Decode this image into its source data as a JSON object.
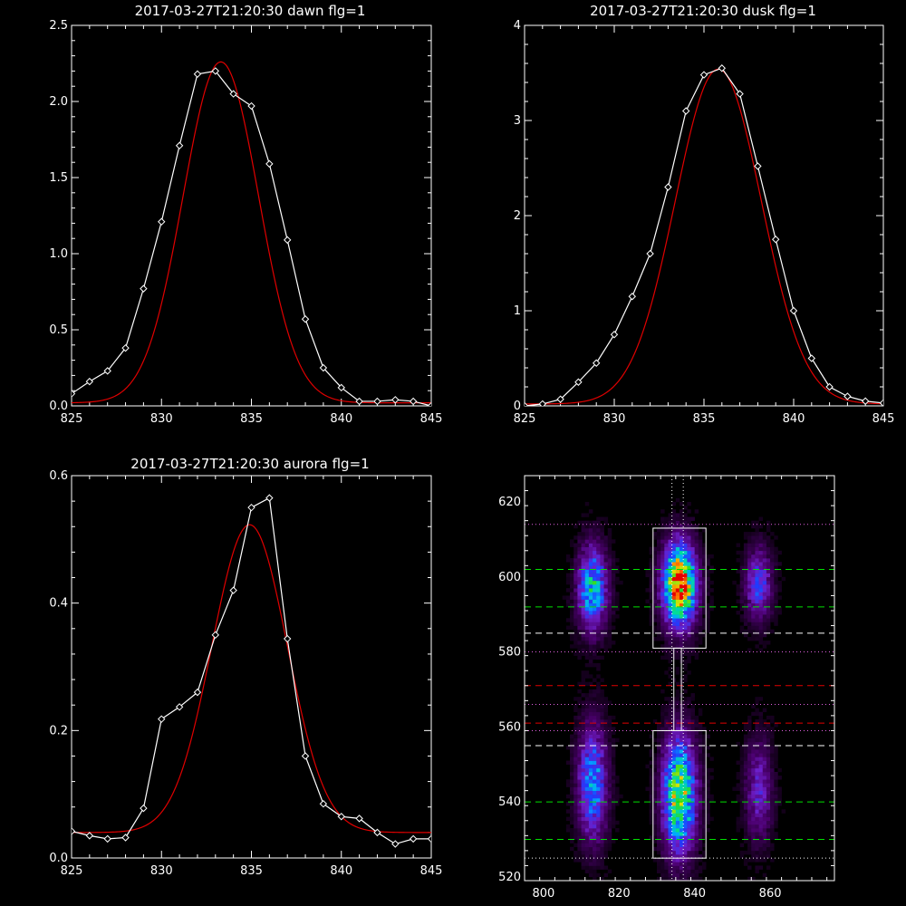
{
  "chart_data": [
    {
      "type": "line",
      "title": "2017-03-27T21:20:30 dawn flg=1",
      "xlim": [
        825,
        845
      ],
      "ylim": [
        0,
        2.5
      ],
      "xticks": [
        825,
        830,
        835,
        840,
        845
      ],
      "xtick_labels": [
        "825",
        "830",
        "835",
        "840",
        "845"
      ],
      "yticks": [
        0,
        0.5,
        1,
        1.5,
        2,
        2.5
      ],
      "ytick_labels": [
        "0.0",
        "0.5",
        "1.0",
        "1.5",
        "2.0",
        "2.5"
      ],
      "series": [
        {
          "kind": "data",
          "color": "#ffffff",
          "marker": "diamond",
          "x": [
            825,
            826,
            827,
            828,
            829,
            830,
            831,
            832,
            833,
            834,
            835,
            836,
            837,
            838,
            839,
            840,
            841,
            842,
            843,
            844,
            845
          ],
          "y": [
            0.08,
            0.16,
            0.23,
            0.38,
            0.77,
            1.21,
            1.71,
            2.18,
            2.2,
            2.05,
            1.97,
            1.59,
            1.09,
            0.57,
            0.25,
            0.12,
            0.03,
            0.03,
            0.04,
            0.03,
            0.0
          ]
        },
        {
          "kind": "fit",
          "color": "#e00000",
          "fit": {
            "amp": 2.24,
            "center": 833.3,
            "sigma": 2.1,
            "base": 0.02
          }
        }
      ]
    },
    {
      "type": "line",
      "title": "2017-03-27T21:20:30 dusk flg=1",
      "xlim": [
        825,
        845
      ],
      "ylim": [
        0,
        4
      ],
      "xticks": [
        825,
        830,
        835,
        840,
        845
      ],
      "xtick_labels": [
        "825",
        "830",
        "835",
        "840",
        "845"
      ],
      "yticks": [
        0,
        1,
        2,
        3,
        4
      ],
      "ytick_labels": [
        "0",
        "1",
        "2",
        "3",
        "4"
      ],
      "series": [
        {
          "kind": "data",
          "color": "#ffffff",
          "marker": "diamond",
          "x": [
            825,
            826,
            827,
            828,
            829,
            830,
            831,
            832,
            833,
            834,
            835,
            836,
            837,
            838,
            839,
            840,
            841,
            842,
            843,
            844,
            845
          ],
          "y": [
            0.0,
            0.02,
            0.07,
            0.25,
            0.45,
            0.75,
            1.15,
            1.6,
            2.3,
            3.1,
            3.48,
            3.55,
            3.28,
            2.52,
            1.75,
            1.0,
            0.5,
            0.2,
            0.1,
            0.05,
            0.03
          ]
        },
        {
          "kind": "fit",
          "color": "#e00000",
          "fit": {
            "amp": 3.52,
            "center": 835.8,
            "sigma": 2.4,
            "base": 0.02
          }
        }
      ]
    },
    {
      "type": "line",
      "title": "2017-03-27T21:20:30 aurora flg=1",
      "xlim": [
        825,
        845
      ],
      "ylim": [
        0,
        0.6
      ],
      "xticks": [
        825,
        830,
        835,
        840,
        845
      ],
      "xtick_labels": [
        "825",
        "830",
        "835",
        "840",
        "845"
      ],
      "yticks": [
        0,
        0.2,
        0.4,
        0.6
      ],
      "ytick_labels": [
        "0.0",
        "0.2",
        "0.4",
        "0.6"
      ],
      "series": [
        {
          "kind": "data",
          "color": "#ffffff",
          "marker": "diamond",
          "x": [
            825,
            826,
            827,
            828,
            829,
            830,
            831,
            832,
            833,
            834,
            835,
            836,
            837,
            838,
            839,
            840,
            841,
            842,
            843,
            844,
            845
          ],
          "y": [
            0.042,
            0.035,
            0.03,
            0.032,
            0.078,
            0.218,
            0.237,
            0.26,
            0.35,
            0.42,
            0.55,
            0.565,
            0.344,
            0.16,
            0.085,
            0.065,
            0.062,
            0.04,
            0.022,
            0.03,
            0.03
          ]
        },
        {
          "kind": "fit",
          "color": "#e00000",
          "fit": {
            "amp": 0.483,
            "center": 834.9,
            "sigma": 2.1,
            "base": 0.04
          }
        }
      ]
    },
    {
      "type": "heatmap",
      "title": "",
      "xlim": [
        795,
        877
      ],
      "ylim": [
        519,
        627
      ],
      "xticks": [
        800,
        820,
        840,
        860
      ],
      "xtick_labels": [
        "800",
        "820",
        "840",
        "860"
      ],
      "yticks": [
        520,
        540,
        560,
        580,
        600,
        620
      ],
      "ytick_labels": [
        "520",
        "540",
        "560",
        "580",
        "600",
        "620"
      ],
      "blobs": [
        {
          "x": 813,
          "y": 597,
          "sx": 2.8,
          "sy": 8,
          "amp": 0.62
        },
        {
          "x": 813,
          "y": 545,
          "sx": 2.8,
          "sy": 11,
          "amp": 0.55
        },
        {
          "x": 836,
          "y": 598,
          "sx": 3.2,
          "sy": 8,
          "amp": 1.0
        },
        {
          "x": 836,
          "y": 542,
          "sx": 3.2,
          "sy": 11,
          "amp": 0.82
        },
        {
          "x": 857,
          "y": 598,
          "sx": 2.6,
          "sy": 7,
          "amp": 0.42
        },
        {
          "x": 857,
          "y": 543,
          "sx": 2.6,
          "sy": 10,
          "amp": 0.32
        }
      ],
      "boxes": [
        {
          "x0": 829,
          "x1": 843,
          "y0": 581,
          "y1": 613
        },
        {
          "x0": 829,
          "x1": 843,
          "y0": 525,
          "y1": 559
        },
        {
          "x0": 834.5,
          "x1": 836.5,
          "y0": 559,
          "y1": 581
        }
      ],
      "hlines": [
        {
          "y": 602,
          "color": "#00e000",
          "style": "dashed"
        },
        {
          "y": 592,
          "color": "#00e000",
          "style": "dashed"
        },
        {
          "y": 585,
          "color": "#ffffff",
          "style": "dashed"
        },
        {
          "y": 571,
          "color": "#e00000",
          "style": "dashed"
        },
        {
          "y": 561,
          "color": "#e00000",
          "style": "dashed"
        },
        {
          "y": 555,
          "color": "#ffffff",
          "style": "dashed"
        },
        {
          "y": 540,
          "color": "#00e000",
          "style": "dashed"
        },
        {
          "y": 530,
          "color": "#00e000",
          "style": "dashed"
        },
        {
          "y": 614,
          "color": "#e060e0",
          "style": "dotted"
        },
        {
          "y": 580,
          "color": "#e060e0",
          "style": "dotted"
        },
        {
          "y": 566,
          "color": "#e060e0",
          "style": "dotted"
        },
        {
          "y": 559,
          "color": "#e060e0",
          "style": "dotted"
        },
        {
          "y": 525,
          "color": "#ffffff",
          "style": "dotted"
        }
      ],
      "vlines": [
        {
          "x": 834,
          "color": "#ffffff",
          "style": "dotted"
        },
        {
          "x": 837,
          "color": "#ffffff",
          "style": "dotted"
        }
      ]
    }
  ]
}
